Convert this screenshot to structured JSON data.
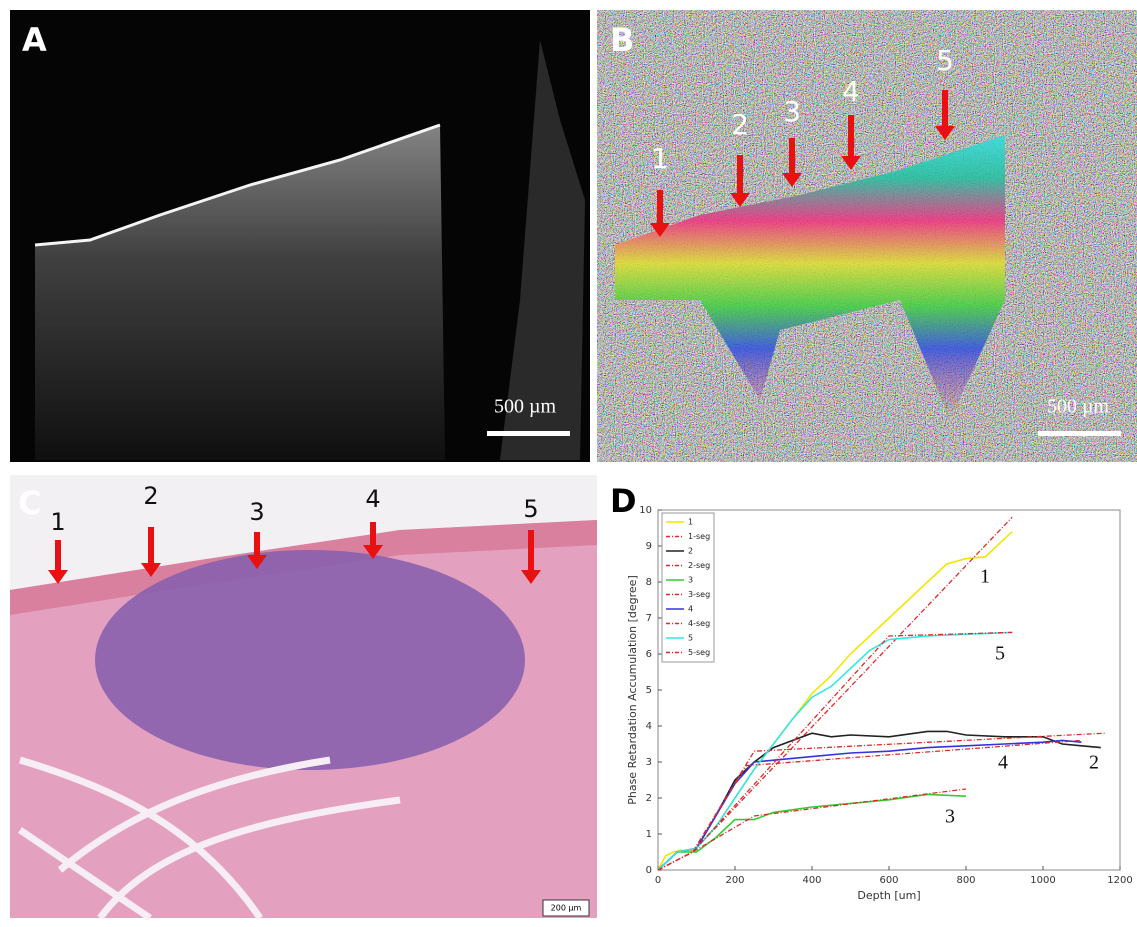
{
  "panel_a": {
    "label": "A",
    "scale_bar": "500 µm"
  },
  "panel_b": {
    "label": "B",
    "arrows": [
      "1",
      "2",
      "3",
      "4",
      "5"
    ],
    "scale_bar": "500 µm"
  },
  "panel_c": {
    "label": "C",
    "arrows": [
      "1",
      "2",
      "3",
      "4",
      "5"
    ],
    "scale_bar": "200 µm"
  },
  "chart_data": {
    "type": "line",
    "label": "D",
    "x_label": "Depth [um]",
    "y_label": "Phase Retardation Accumulation [degree]",
    "xlim": [
      0,
      1200
    ],
    "xticks": [
      0,
      200,
      400,
      600,
      800,
      1000,
      1200
    ],
    "ylim": [
      0,
      10
    ],
    "yticks": [
      0,
      1,
      2,
      3,
      4,
      5,
      6,
      7,
      8,
      9,
      10
    ],
    "legend": "upper left",
    "annotations": [
      "1",
      "5",
      "4",
      "2",
      "3"
    ],
    "series": [
      {
        "name": "1",
        "color": "#f2e600",
        "style": "solid",
        "x": [
          0,
          20,
          40,
          60,
          80,
          100,
          150,
          200,
          250,
          300,
          350,
          400,
          450,
          500,
          550,
          600,
          650,
          700,
          750,
          800,
          850,
          900,
          920
        ],
        "values": [
          0,
          0.4,
          0.5,
          0.55,
          0.5,
          0.6,
          1.2,
          2.0,
          2.8,
          3.5,
          4.2,
          4.9,
          5.4,
          6.0,
          6.5,
          7.0,
          7.5,
          8.0,
          8.5,
          8.65,
          8.7,
          9.2,
          9.4
        ]
      },
      {
        "name": "1-seg",
        "color": "#e02828",
        "style": "dashdot",
        "x": [
          0,
          90,
          920
        ],
        "values": [
          0,
          0.5,
          9.8
        ]
      },
      {
        "name": "2",
        "color": "#222222",
        "style": "solid",
        "x": [
          0,
          50,
          100,
          150,
          200,
          250,
          300,
          350,
          400,
          450,
          500,
          600,
          700,
          750,
          800,
          900,
          1000,
          1050,
          1100,
          1150
        ],
        "values": [
          0,
          0.5,
          0.6,
          1.5,
          2.5,
          3.0,
          3.4,
          3.6,
          3.8,
          3.7,
          3.75,
          3.7,
          3.85,
          3.85,
          3.75,
          3.7,
          3.7,
          3.5,
          3.45,
          3.4
        ]
      },
      {
        "name": "2-seg",
        "color": "#e02828",
        "style": "dashdot",
        "x": [
          0,
          90,
          250,
          1160
        ],
        "values": [
          0,
          0.5,
          3.3,
          3.8
        ]
      },
      {
        "name": "3",
        "color": "#33cc33",
        "style": "solid",
        "x": [
          0,
          50,
          100,
          150,
          200,
          250,
          300,
          400,
          500,
          600,
          700,
          800
        ],
        "values": [
          0,
          0.5,
          0.5,
          0.9,
          1.4,
          1.4,
          1.6,
          1.75,
          1.85,
          1.95,
          2.1,
          2.05
        ]
      },
      {
        "name": "3-seg",
        "color": "#e02828",
        "style": "dashdot",
        "x": [
          0,
          90,
          250,
          800
        ],
        "values": [
          0,
          0.5,
          1.5,
          2.25
        ]
      },
      {
        "name": "4",
        "color": "#3333dd",
        "style": "solid",
        "x": [
          0,
          50,
          100,
          150,
          200,
          250,
          300,
          400,
          500,
          600,
          700,
          800,
          900,
          1000,
          1050,
          1100
        ],
        "values": [
          0,
          0.5,
          0.6,
          1.5,
          2.4,
          3.0,
          3.05,
          3.15,
          3.25,
          3.3,
          3.4,
          3.45,
          3.5,
          3.55,
          3.6,
          3.55
        ]
      },
      {
        "name": "4-seg",
        "color": "#e02828",
        "style": "dashdot",
        "x": [
          0,
          90,
          230,
          1100
        ],
        "values": [
          0,
          0.5,
          2.9,
          3.6
        ]
      },
      {
        "name": "5",
        "color": "#33e6e6",
        "style": "solid",
        "x": [
          0,
          50,
          100,
          150,
          200,
          250,
          300,
          350,
          400,
          450,
          500,
          550,
          600,
          650,
          700,
          800,
          920
        ],
        "values": [
          0,
          0.5,
          0.6,
          1.2,
          2.0,
          2.8,
          3.5,
          4.2,
          4.8,
          5.1,
          5.6,
          6.1,
          6.4,
          6.45,
          6.5,
          6.55,
          6.6
        ]
      },
      {
        "name": "5-seg",
        "color": "#e02828",
        "style": "dashdot",
        "x": [
          0,
          90,
          600,
          920
        ],
        "values": [
          0,
          0.5,
          6.5,
          6.6
        ]
      }
    ]
  }
}
